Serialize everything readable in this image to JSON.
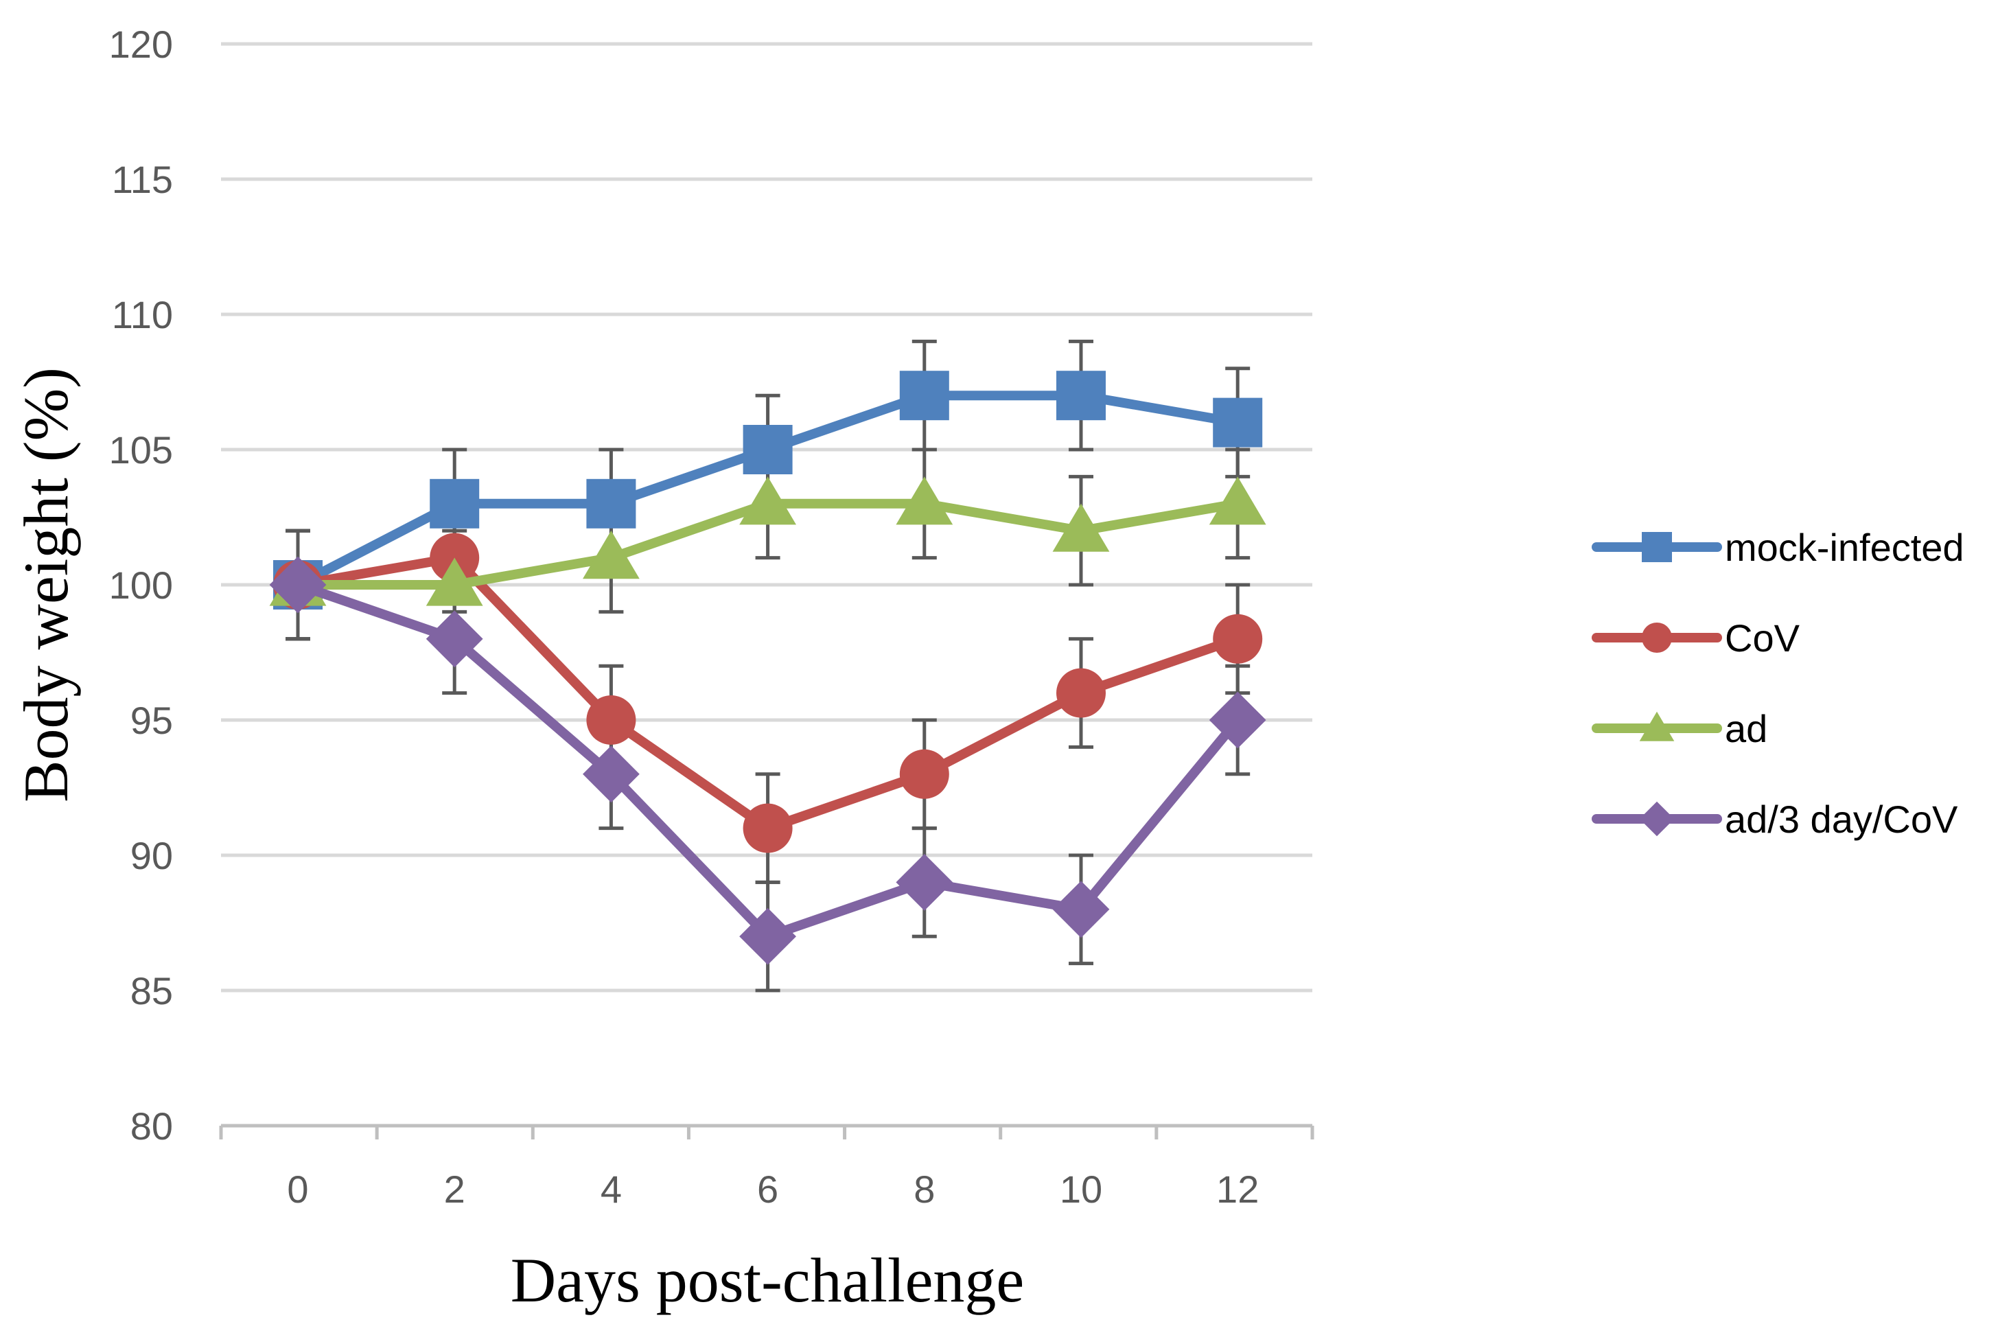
{
  "chart_data": {
    "type": "line",
    "title": "",
    "xlabel": "Days post-challenge",
    "ylabel": "Body weight (%)",
    "x": [
      0,
      2,
      4,
      6,
      8,
      10,
      12
    ],
    "x_tick_labels": [
      "0",
      "2",
      "4",
      "6",
      "8",
      "10",
      "12"
    ],
    "ylim": [
      80,
      120
    ],
    "y_ticks": [
      80,
      85,
      90,
      95,
      100,
      105,
      110,
      115,
      120
    ],
    "y_tick_labels": [
      "80",
      "85",
      "90",
      "95",
      "100",
      "105",
      "110",
      "115",
      "120"
    ],
    "grid": true,
    "legend_position": "right",
    "error_bar": 2,
    "series": [
      {
        "name": "mock-infected",
        "color": "#4f81bd",
        "marker": "square",
        "values": [
          100,
          103,
          103,
          105,
          107,
          107,
          106
        ]
      },
      {
        "name": "CoV",
        "color": "#c0504d",
        "marker": "circle",
        "values": [
          100,
          101,
          95,
          91,
          93,
          96,
          98
        ]
      },
      {
        "name": "ad",
        "color": "#9bbb59",
        "marker": "triangle",
        "values": [
          100,
          100,
          101,
          103,
          103,
          102,
          103
        ]
      },
      {
        "name": "ad/3 day/CoV",
        "color": "#8064a2",
        "marker": "diamond",
        "values": [
          100,
          98,
          93,
          87,
          89,
          88,
          95
        ]
      }
    ]
  }
}
